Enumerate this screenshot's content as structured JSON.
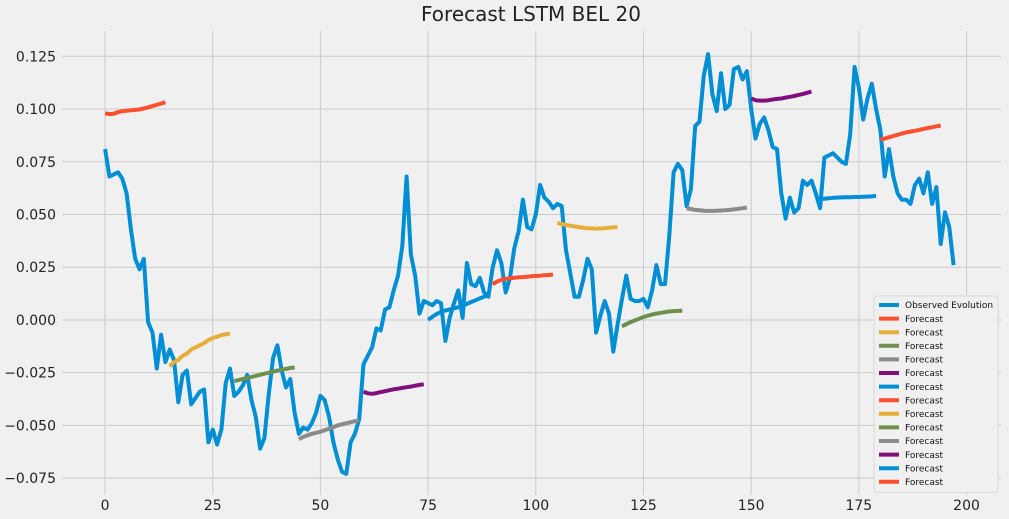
{
  "chart_data": {
    "type": "line",
    "title": "Forecast LSTM BEL 20",
    "xlabel": "",
    "ylabel": "",
    "xlim": [
      -10,
      208
    ],
    "ylim": [
      -0.083,
      0.137
    ],
    "x_ticks": [
      0,
      25,
      50,
      75,
      100,
      125,
      150,
      175,
      200
    ],
    "y_ticks": [
      -0.075,
      -0.05,
      -0.025,
      0.0,
      0.025,
      0.05,
      0.075,
      0.1,
      0.125
    ],
    "x_tick_labels": [
      "0",
      "25",
      "50",
      "75",
      "100",
      "125",
      "150",
      "175",
      "200"
    ],
    "y_tick_labels": [
      "−0.075",
      "−0.050",
      "−0.025",
      "0.000",
      "0.025",
      "0.050",
      "0.075",
      "0.100",
      "0.125"
    ],
    "grid": true,
    "legend_position": "lower right",
    "series": [
      {
        "name": "Observed Evolution",
        "color": "#008fd5",
        "x_start": 0,
        "values": [
          0.081,
          0.068,
          0.069,
          0.07,
          0.067,
          0.06,
          0.043,
          0.029,
          0.024,
          0.029,
          -0.001,
          -0.006,
          -0.023,
          -0.007,
          -0.02,
          -0.014,
          -0.019,
          -0.039,
          -0.026,
          -0.024,
          -0.04,
          -0.037,
          -0.034,
          -0.033,
          -0.058,
          -0.052,
          -0.059,
          -0.052,
          -0.03,
          -0.023,
          -0.036,
          -0.034,
          -0.031,
          -0.026,
          -0.038,
          -0.046,
          -0.061,
          -0.056,
          -0.035,
          -0.018,
          -0.012,
          -0.024,
          -0.032,
          -0.028,
          -0.044,
          -0.054,
          -0.051,
          -0.052,
          -0.049,
          -0.044,
          -0.036,
          -0.038,
          -0.046,
          -0.058,
          -0.066,
          -0.072,
          -0.073,
          -0.058,
          -0.054,
          -0.047,
          -0.021,
          -0.017,
          -0.013,
          -0.004,
          -0.005,
          0.005,
          0.006,
          0.014,
          0.021,
          0.035,
          0.068,
          0.031,
          0.021,
          0.003,
          0.009,
          0.008,
          0.007,
          0.009,
          0.008,
          -0.01,
          0.001,
          0.008,
          0.014,
          0.001,
          0.027,
          0.017,
          0.016,
          0.02,
          0.013,
          0.011,
          0.025,
          0.033,
          0.027,
          0.013,
          0.02,
          0.034,
          0.042,
          0.057,
          0.044,
          0.043,
          0.05,
          0.064,
          0.058,
          0.056,
          0.053,
          0.055,
          0.054,
          0.033,
          0.022,
          0.011,
          0.011,
          0.019,
          0.029,
          0.024,
          -0.006,
          0.002,
          0.009,
          0.003,
          -0.015,
          -0.002,
          0.01,
          0.021,
          0.01,
          0.009,
          0.009,
          0.01,
          0.006,
          0.014,
          0.026,
          0.017,
          0.017,
          0.04,
          0.07,
          0.074,
          0.071,
          0.054,
          0.062,
          0.092,
          0.094,
          0.116,
          0.126,
          0.107,
          0.099,
          0.117,
          0.1,
          0.102,
          0.119,
          0.12,
          0.114,
          0.118,
          0.1,
          0.086,
          0.093,
          0.096,
          0.09,
          0.082,
          0.081,
          0.06,
          0.048,
          0.058,
          0.051,
          0.053,
          0.066,
          0.064,
          0.066,
          0.06,
          0.053,
          0.077,
          0.078,
          0.079,
          0.077,
          0.075,
          0.074,
          0.088,
          0.12,
          0.11,
          0.095,
          0.105,
          0.112,
          0.1,
          0.09,
          0.068,
          0.081,
          0.068,
          0.06,
          0.057,
          0.057,
          0.055,
          0.064,
          0.067,
          0.06,
          0.07,
          0.055,
          0.063,
          0.036,
          0.051,
          0.044,
          0.026
        ]
      },
      {
        "name": "Forecast",
        "color": "#fc4f30",
        "x_start": 0,
        "values": [
          0.098,
          0.0976,
          0.0978,
          0.0985,
          0.099,
          0.0992,
          0.0994,
          0.0996,
          0.0998,
          0.1003,
          0.1008,
          0.1014,
          0.102,
          0.1026,
          0.1032
        ]
      },
      {
        "name": "Forecast",
        "color": "#e5ae38",
        "x_start": 15,
        "values": [
          -0.022,
          -0.02,
          -0.019,
          -0.017,
          -0.016,
          -0.014,
          -0.013,
          -0.012,
          -0.011,
          -0.0095,
          -0.0085,
          -0.008,
          -0.0072,
          -0.0068,
          -0.0064
        ]
      },
      {
        "name": "Forecast",
        "color": "#6d904f",
        "x_start": 30,
        "values": [
          -0.029,
          -0.0285,
          -0.028,
          -0.0275,
          -0.027,
          -0.0265,
          -0.026,
          -0.0255,
          -0.025,
          -0.0245,
          -0.024,
          -0.0236,
          -0.0232,
          -0.0228,
          -0.0225
        ]
      },
      {
        "name": "Forecast",
        "color": "#8b8b8b",
        "x_start": 45,
        "values": [
          -0.0565,
          -0.0555,
          -0.0547,
          -0.054,
          -0.0535,
          -0.053,
          -0.0523,
          -0.0515,
          -0.0508,
          -0.05,
          -0.0495,
          -0.049,
          -0.0485,
          -0.048,
          -0.0477
        ]
      },
      {
        "name": "Forecast",
        "color": "#810f7c",
        "x_start": 60,
        "values": [
          -0.034,
          -0.0348,
          -0.035,
          -0.0347,
          -0.0342,
          -0.0338,
          -0.0333,
          -0.0329,
          -0.0326,
          -0.0322,
          -0.0319,
          -0.0316,
          -0.0312,
          -0.0308,
          -0.0305
        ]
      },
      {
        "name": "Forecast",
        "color": "#008fd5",
        "x_start": 75,
        "values": [
          0.0,
          0.0015,
          0.0028,
          0.0038,
          0.0045,
          0.005,
          0.0055,
          0.006,
          0.0068,
          0.0076,
          0.0085,
          0.0093,
          0.0102,
          0.011,
          0.0118
        ]
      },
      {
        "name": "Forecast",
        "color": "#fc4f30",
        "x_start": 90,
        "values": [
          0.017,
          0.0182,
          0.019,
          0.0195,
          0.0198,
          0.02,
          0.0202,
          0.0203,
          0.0205,
          0.0207,
          0.0209,
          0.021,
          0.0212,
          0.0213,
          0.0215
        ]
      },
      {
        "name": "Forecast",
        "color": "#e5ae38",
        "x_start": 105,
        "values": [
          0.046,
          0.0455,
          0.045,
          0.0447,
          0.0443,
          0.044,
          0.0437,
          0.0435,
          0.0434,
          0.0433,
          0.0434,
          0.0435,
          0.0437,
          0.0439,
          0.044
        ]
      },
      {
        "name": "Forecast",
        "color": "#6d904f",
        "x_start": 120,
        "values": [
          -0.003,
          -0.002,
          -0.001,
          -0.0002,
          0.0006,
          0.0014,
          0.002,
          0.0026,
          0.003,
          0.0034,
          0.0037,
          0.004,
          0.0042,
          0.0043,
          0.0044
        ]
      },
      {
        "name": "Forecast",
        "color": "#8b8b8b",
        "x_start": 135,
        "values": [
          0.053,
          0.0526,
          0.0522,
          0.052,
          0.0518,
          0.0517,
          0.0517,
          0.0518,
          0.0519,
          0.052,
          0.0522,
          0.0524,
          0.0527,
          0.053,
          0.0533
        ]
      },
      {
        "name": "Forecast",
        "color": "#810f7c",
        "x_start": 150,
        "values": [
          0.105,
          0.1042,
          0.104,
          0.104,
          0.1042,
          0.1045,
          0.1048,
          0.105,
          0.1054,
          0.1058,
          0.1062,
          0.1067,
          0.1072,
          0.1077,
          0.1083
        ]
      },
      {
        "name": "Forecast",
        "color": "#008fd5",
        "x_start": 165,
        "values": [
          0.057,
          0.0572,
          0.0575,
          0.0577,
          0.0579,
          0.058,
          0.0581,
          0.0582,
          0.0582,
          0.0583,
          0.0583,
          0.0584,
          0.0585,
          0.0586,
          0.0588
        ]
      },
      {
        "name": "Forecast",
        "color": "#fc4f30",
        "x_start": 180,
        "values": [
          0.0855,
          0.086,
          0.0866,
          0.0872,
          0.0878,
          0.0884,
          0.0889,
          0.0893,
          0.0897,
          0.0901,
          0.0906,
          0.091,
          0.0914,
          0.0918,
          0.0922
        ]
      }
    ]
  }
}
